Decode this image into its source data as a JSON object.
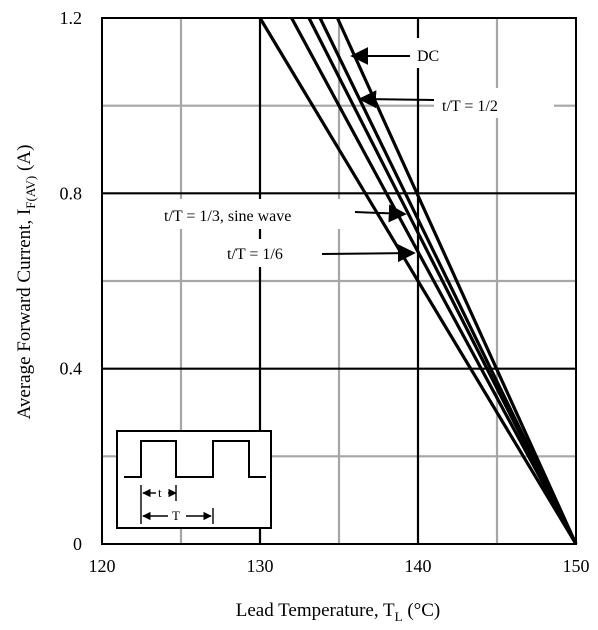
{
  "chart_data": {
    "type": "line",
    "title": "",
    "xlabel": "Lead Temperature, T",
    "xlabel_sub": "L",
    "xlabel_unit": " (°C)",
    "ylabel": "Average Forward Current, I",
    "ylabel_sub": "F(AV)",
    "ylabel_unit": " (A)",
    "xlim": [
      120,
      150
    ],
    "ylim": [
      0,
      1.2
    ],
    "x_ticks": [
      120,
      130,
      140,
      150
    ],
    "x_tick_labels": [
      "120",
      "130",
      "140",
      "150"
    ],
    "y_ticks": [
      0,
      0.4,
      0.8,
      1.2
    ],
    "y_tick_labels": [
      "0",
      "0.4",
      "0.8",
      "1.2"
    ],
    "grid": {
      "major": true,
      "minor": true
    },
    "series": [
      {
        "name": "DC",
        "x": [
          134.9,
          150
        ],
        "y": [
          1.2,
          0
        ]
      },
      {
        "name": "t/T = 1/2",
        "x": [
          133.8,
          150
        ],
        "y": [
          1.2,
          0
        ]
      },
      {
        "name": "t/T = 1/3, sine wave",
        "x": [
          133.1,
          150
        ],
        "y": [
          1.2,
          0
        ]
      },
      {
        "name": "t/T = 1/6",
        "x": [
          132.0,
          150
        ],
        "y": [
          1.2,
          0
        ]
      },
      {
        "name": "",
        "x": [
          130.0,
          150
        ],
        "y": [
          1.2,
          0
        ]
      }
    ],
    "annotations": [
      {
        "text": "DC",
        "arrow_to": [
          135.6,
          1.12
        ]
      },
      {
        "text": "t/T = 1/2",
        "arrow_to": [
          136.5,
          1.015
        ]
      },
      {
        "text": "t/T = 1/3, sine wave",
        "arrow_to": [
          139.0,
          0.755
        ]
      },
      {
        "text": "t/T = 1/6",
        "arrow_to": [
          139.8,
          0.665
        ]
      }
    ],
    "inset": {
      "t_label": "t",
      "T_label": "T"
    }
  }
}
